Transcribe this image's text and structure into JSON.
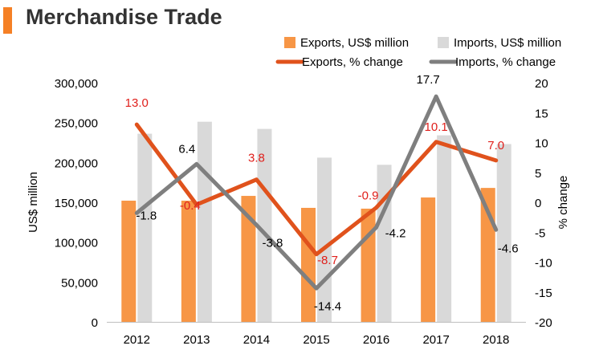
{
  "page": {
    "title": "Merchandise Trade",
    "accent_color": "#F58025"
  },
  "chart_data": {
    "type": "bar",
    "combo": "bar+line",
    "title": "Merchandise Trade",
    "categories": [
      "2012",
      "2013",
      "2014",
      "2015",
      "2016",
      "2017",
      "2018"
    ],
    "y_left_label": "US$ million",
    "y_right_label": "% change",
    "y_left_ticks": [
      "0",
      "50,000",
      "100,000",
      "150,000",
      "200,000",
      "250,000",
      "300,000"
    ],
    "y_right_ticks": [
      "-20",
      "-15",
      "-10",
      "-5",
      "0",
      "5",
      "10",
      "15",
      "20"
    ],
    "y_left_range": [
      0,
      300000
    ],
    "y_right_range": [
      -20,
      20
    ],
    "grid": false,
    "legend_position": "top-right",
    "bar_series": [
      {
        "name": "Exports, US$ million",
        "color": "#F79646",
        "values": [
          152000,
          152000,
          158000,
          143000,
          142000,
          156000,
          168000
        ]
      },
      {
        "name": "Imports, US$ million",
        "color": "#D9D9D9",
        "values": [
          236000,
          251000,
          242000,
          206000,
          197000,
          234000,
          223000
        ]
      }
    ],
    "line_series": [
      {
        "name": "Exports, % change",
        "color": "#E0521C",
        "label_color": "#E0201C",
        "values": [
          13.0,
          -0.4,
          3.8,
          -8.7,
          -0.9,
          10.1,
          7.0
        ],
        "labels": [
          "13.0",
          "-0.4",
          "3.8",
          "-8.7",
          "-0.9",
          "10.1",
          "7.0"
        ]
      },
      {
        "name": "Imports, % change",
        "color": "#7F7F7F",
        "label_color": "#000000",
        "values": [
          -1.8,
          6.4,
          -3.8,
          -14.4,
          -4.2,
          17.7,
          -4.6
        ],
        "labels": [
          "-1.8",
          "6.4",
          "-3.8",
          "-14.4",
          "-4.2",
          "17.7",
          "-4.6"
        ]
      }
    ]
  }
}
